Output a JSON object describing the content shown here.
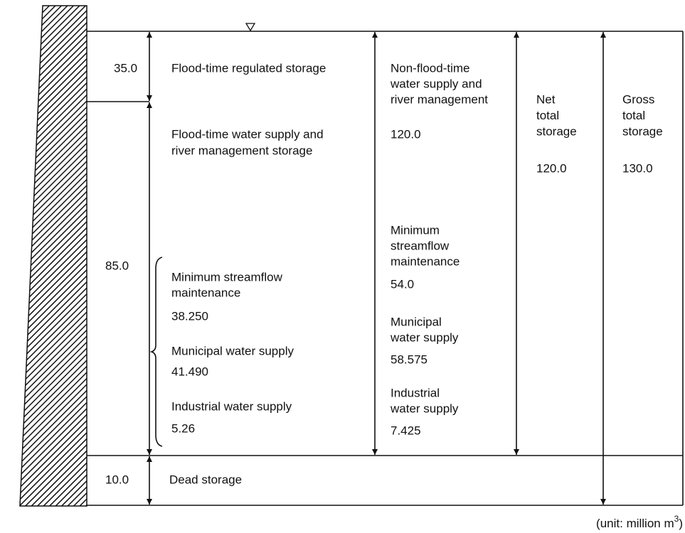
{
  "flood_regulated": {
    "amount": "35.0",
    "label": "Flood-time regulated storage"
  },
  "flood_supply": {
    "amount": "85.0",
    "label": [
      "Flood-time water supply and",
      "river management storage"
    ],
    "items": [
      {
        "label": [
          "Minimum streamflow",
          "maintenance"
        ],
        "amount": "38.250"
      },
      {
        "label": [
          "Municipal water supply"
        ],
        "amount": "41.490"
      },
      {
        "label": [
          "Industrial water supply"
        ],
        "amount": "5.26"
      }
    ]
  },
  "dead": {
    "amount": "10.0",
    "label": "Dead storage"
  },
  "non_flood": {
    "label": [
      "Non-flood-time",
      "water supply and",
      "river management"
    ],
    "amount": "120.0",
    "items": [
      {
        "label": [
          "Minimum",
          "streamflow",
          "maintenance"
        ],
        "amount": "54.0"
      },
      {
        "label": [
          "Municipal",
          "water supply"
        ],
        "amount": "58.575"
      },
      {
        "label": [
          "Industrial",
          "water supply"
        ],
        "amount": "7.425"
      }
    ]
  },
  "net_total": {
    "label": [
      "Net",
      "total",
      "storage"
    ],
    "amount": "120.0"
  },
  "gross_total": {
    "label": [
      "Gross",
      "total",
      "storage"
    ],
    "amount": "130.0"
  },
  "unit": {
    "prefix": "(unit: million m",
    "superscript": "3",
    "suffix": ")"
  }
}
